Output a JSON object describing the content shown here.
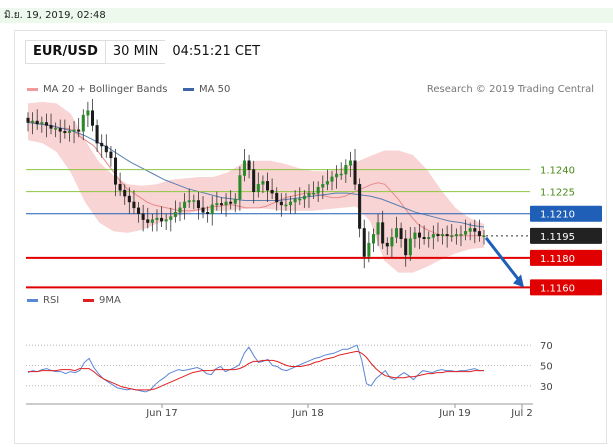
{
  "header": {
    "date_stamp": "มิ.ย. 19, 2019, 02:48",
    "pair": "EUR/USD",
    "timeframe": "30 MIN",
    "clock": "04:51:21 CET",
    "legend_ma20": "MA 20 + Bollinger Bands",
    "legend_ma50": "MA 50",
    "credit": "Research © 2019 Trading Central",
    "rsi_legend": "RSI",
    "rsi_ma_legend": "9MA"
  },
  "colors": {
    "candle_up": "#2a8a2a",
    "candle_down": "#1a1a1a",
    "bollinger_fill": "#f7c6c6",
    "ma20": "#e88a8a",
    "ma50": "#5a7fb0",
    "support": "#e00000",
    "pivot": "#1f5fb8",
    "target_green": "#8cc63f",
    "rsi": "#5a86d6",
    "rsi_ma": "#e02020",
    "arrow": "#1f5fb8"
  },
  "chart_data": [
    {
      "type": "candlestick",
      "ylim": [
        1.1148,
        1.129
      ],
      "levels": [
        {
          "label": "1.1240",
          "value": 1.124,
          "kind": "resistance_green"
        },
        {
          "label": "1.1225",
          "value": 1.1225,
          "kind": "resistance_green"
        },
        {
          "label": "1.1210",
          "value": 1.121,
          "kind": "pivot"
        },
        {
          "label": "1.1195",
          "value": 1.1195,
          "kind": "last_price"
        },
        {
          "label": "1.1180",
          "value": 1.118,
          "kind": "support"
        },
        {
          "label": "1.1160",
          "value": 1.116,
          "kind": "support"
        }
      ],
      "x_ticks": [
        "Jun 17",
        "Jun 18",
        "Jun 19",
        "Jul 2"
      ],
      "close": [
        1.1272,
        1.1273,
        1.1271,
        1.1272,
        1.127,
        1.1268,
        1.1268,
        1.1266,
        1.1265,
        1.1266,
        1.1267,
        1.1266,
        1.1277,
        1.128,
        1.127,
        1.1258,
        1.1256,
        1.1252,
        1.1248,
        1.123,
        1.1226,
        1.1222,
        1.1218,
        1.1214,
        1.121,
        1.1206,
        1.1204,
        1.1206,
        1.1207,
        1.1205,
        1.1206,
        1.1208,
        1.1211,
        1.1214,
        1.1218,
        1.1219,
        1.1219,
        1.1214,
        1.1211,
        1.121,
        1.1216,
        1.1217,
        1.1216,
        1.1218,
        1.1217,
        1.122,
        1.1236,
        1.1246,
        1.124,
        1.1225,
        1.123,
        1.1232,
        1.1226,
        1.1224,
        1.1218,
        1.1216,
        1.1216,
        1.1218,
        1.122,
        1.122,
        1.1222,
        1.1224,
        1.1224,
        1.1228,
        1.123,
        1.1232,
        1.1235,
        1.1237,
        1.1237,
        1.1243,
        1.1246,
        1.123,
        1.12,
        1.1181,
        1.119,
        1.1196,
        1.1204,
        1.119,
        1.1188,
        1.1194,
        1.12,
        1.1193,
        1.1182,
        1.1193,
        1.1197,
        1.1194,
        1.1193,
        1.1194,
        1.1196,
        1.1195,
        1.1196,
        1.1195,
        1.1195,
        1.1196,
        1.1196,
        1.1198,
        1.12,
        1.1198,
        1.1195,
        1.1195
      ],
      "ma20": [
        1.1273,
        1.1272,
        1.1271,
        1.127,
        1.1269,
        1.1268,
        1.1268,
        1.1266,
        1.1262,
        1.1259,
        1.1256,
        1.125,
        1.1244,
        1.1238,
        1.1232,
        1.1227,
        1.1224,
        1.1221,
        1.1218,
        1.1216,
        1.1215,
        1.1214,
        1.1213,
        1.1212,
        1.1212,
        1.1212,
        1.1213,
        1.1214,
        1.1215,
        1.1215,
        1.1216,
        1.1216,
        1.1215,
        1.1214,
        1.1214,
        1.1214,
        1.1215,
        1.1217,
        1.1219,
        1.1221,
        1.1222,
        1.1223,
        1.1224,
        1.1224,
        1.1223,
        1.1222,
        1.1221,
        1.1221,
        1.1222,
        1.1224,
        1.1226,
        1.1228,
        1.123,
        1.1231,
        1.123,
        1.1225,
        1.122,
        1.1214,
        1.1208,
        1.1203,
        1.12,
        1.1198,
        1.1196,
        1.1195,
        1.1195,
        1.1195,
        1.1195,
        1.1195,
        1.1195,
        1.1195
      ],
      "ma50": [
        1.1272,
        1.1271,
        1.127,
        1.1268,
        1.1266,
        1.1263,
        1.1259,
        1.1255,
        1.125,
        1.1245,
        1.1241,
        1.1237,
        1.1233,
        1.123,
        1.1227,
        1.1225,
        1.1223,
        1.1221,
        1.122,
        1.1219,
        1.1219,
        1.1219,
        1.1219,
        1.122,
        1.1221,
        1.1222,
        1.1223,
        1.1224,
        1.1224,
        1.1223,
        1.1222,
        1.122,
        1.1217,
        1.1214,
        1.1211,
        1.1209,
        1.1207,
        1.1205,
        1.1204,
        1.1202,
        1.1201
      ],
      "bb_upper": [
        1.1285,
        1.1286,
        1.1285,
        1.1278,
        1.126,
        1.1245,
        1.1236,
        1.123,
        1.1229,
        1.123,
        1.1233,
        1.1234,
        1.1235,
        1.1235,
        1.1238,
        1.1244,
        1.1246,
        1.1246,
        1.1244,
        1.1241,
        1.1239,
        1.1239,
        1.1241,
        1.1245,
        1.1249,
        1.1253,
        1.1253,
        1.125,
        1.124,
        1.1226,
        1.1214,
        1.1207,
        1.1203
      ],
      "bb_lower": [
        1.126,
        1.1258,
        1.1252,
        1.1238,
        1.1218,
        1.1204,
        1.1198,
        1.1197,
        1.1199,
        1.1203,
        1.1207,
        1.121,
        1.1212,
        1.1212,
        1.1212,
        1.1213,
        1.1214,
        1.1213,
        1.1212,
        1.1212,
        1.1212,
        1.1213,
        1.1214,
        1.1215,
        1.1205,
        1.1178,
        1.117,
        1.117,
        1.1174,
        1.1179,
        1.1183,
        1.1186,
        1.1187
      ]
    },
    {
      "type": "line",
      "title": "RSI",
      "ylim": [
        20,
        80
      ],
      "y_ticks": [
        30,
        50,
        70
      ],
      "rsi": [
        43,
        45,
        44,
        46,
        47,
        45,
        44,
        44,
        42,
        44,
        43,
        45,
        53,
        57,
        48,
        42,
        37,
        34,
        31,
        28,
        27,
        26,
        27,
        26,
        25,
        24,
        26,
        31,
        35,
        38,
        42,
        44,
        46,
        45,
        46,
        47,
        48,
        46,
        42,
        41,
        47,
        49,
        44,
        46,
        48,
        51,
        62,
        68,
        60,
        53,
        54,
        56,
        50,
        49,
        46,
        45,
        47,
        49,
        51,
        53,
        55,
        57,
        58,
        60,
        61,
        62,
        64,
        66,
        66,
        68,
        70,
        55,
        32,
        30,
        37,
        41,
        45,
        38,
        36,
        40,
        43,
        40,
        36,
        41,
        45,
        44,
        43,
        45,
        46,
        45,
        45,
        44,
        45,
        45,
        46,
        47,
        45,
        45
      ],
      "ma": [
        44,
        44,
        44,
        45,
        45,
        45,
        45,
        46,
        46,
        46,
        45,
        47,
        47,
        47,
        44,
        40,
        37,
        35,
        33,
        31,
        29,
        28,
        27,
        26,
        26,
        26,
        26,
        27,
        29,
        31,
        33,
        35,
        37,
        39,
        41,
        43,
        44,
        45,
        45,
        45,
        46,
        46,
        46,
        46,
        46,
        47,
        49,
        52,
        54,
        54,
        55,
        55,
        55,
        54,
        52,
        50,
        49,
        49,
        49,
        50,
        51,
        53,
        54,
        56,
        57,
        58,
        60,
        61,
        62,
        63,
        64,
        62,
        58,
        52,
        47,
        43,
        40,
        39,
        38,
        38,
        38,
        39,
        39,
        40,
        41,
        42,
        42,
        43,
        43,
        44,
        44,
        44,
        44,
        44,
        44,
        45,
        45,
        45
      ]
    }
  ]
}
